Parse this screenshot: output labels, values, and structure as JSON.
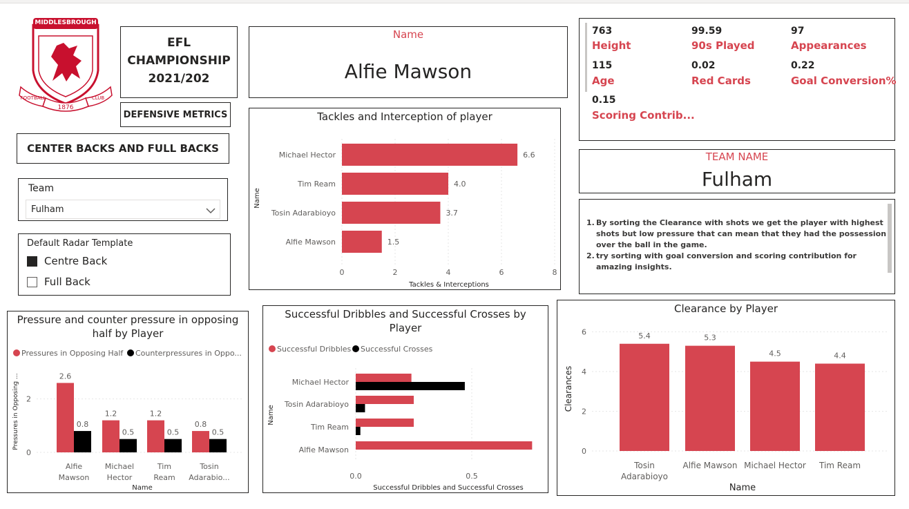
{
  "header": {
    "league_line1": "EFL",
    "league_line2": "CHAMPIONSHIP",
    "league_line3": "2021/202",
    "defensive_metrics": "DEFENSIVE METRICS",
    "positions": "CENTER BACKS AND FULL BACKS"
  },
  "logo": {
    "top_text": "MIDDLESBROUGH",
    "left_text": "FOOTBALL",
    "right_text": "CLUB",
    "year": "1876"
  },
  "team_filter": {
    "label": "Team",
    "value": "Fulham"
  },
  "radar": {
    "title": "Default Radar Template",
    "options": [
      {
        "label": "Centre Back",
        "checked": true
      },
      {
        "label": "Full Back",
        "checked": false
      }
    ]
  },
  "name_card": {
    "label": "Name",
    "value": "Alfie Mawson"
  },
  "kpis": [
    {
      "value": "763",
      "label": "Height"
    },
    {
      "value": "99.59",
      "label": "90s Played"
    },
    {
      "value": "97",
      "label": "Appearances"
    },
    {
      "value": "115",
      "label": "Age"
    },
    {
      "value": "0.02",
      "label": "Red Cards"
    },
    {
      "value": "0.22",
      "label": "Goal Conversion%"
    },
    {
      "value": "0.15",
      "label": "Scoring Contrib..."
    }
  ],
  "team_card": {
    "label": "TEAM NAME",
    "value": "Fulham"
  },
  "notes": {
    "item1": "By sorting the Clearance with shots we get the player with highest shots but low pressure that can mean that they had the possession over the ball in the game.",
    "item2": "try sorting with goal conversion and scoring contribution for amazing insights."
  },
  "colors": {
    "accent": "#d64550",
    "secondary": "#000000"
  },
  "chart_data": [
    {
      "id": "tackles",
      "type": "bar",
      "orientation": "horizontal",
      "title": "Tackles and Interception of player",
      "categories": [
        "Michael Hector",
        "Tim Ream",
        "Tosin Adarabioyo",
        "Alfie Mawson"
      ],
      "values": [
        6.6,
        4.0,
        3.7,
        1.5
      ],
      "value_labels": [
        "6.6",
        "4.0",
        "3.7",
        "1.5"
      ],
      "xlabel": "Tackles & Interceptions",
      "ylabel": "Name",
      "xlim": [
        0,
        8
      ],
      "ticks": [
        "0",
        "2",
        "4",
        "6",
        "8"
      ]
    },
    {
      "id": "pressure",
      "type": "bar",
      "title": "Pressure and counter pressure in opposing half by Player",
      "categories": [
        "Alfie Mawson",
        "Michael Hector",
        "Tim Ream",
        "Tosin Adarabio..."
      ],
      "series": [
        {
          "name": "Pressures in Opposing Half",
          "values": [
            2.6,
            1.2,
            1.2,
            0.8
          ],
          "labels": [
            "2.6",
            "1.2",
            "1.2",
            "0.8"
          ]
        },
        {
          "name": "Counterpressures in Oppo...",
          "values": [
            0.8,
            0.5,
            0.5,
            0.5
          ],
          "labels": [
            "0.8",
            "0.5",
            "0.5",
            "0.5"
          ]
        }
      ],
      "xlabel": "Name",
      "ylabel": "Pressures in Opposing ...",
      "ylim": [
        0,
        3
      ],
      "ticks": [
        "0",
        "2"
      ]
    },
    {
      "id": "dribbles",
      "type": "bar",
      "orientation": "horizontal",
      "title": "Successful Dribbles and Successful Crosses by Player",
      "categories": [
        "Michael Hector",
        "Tosin Adarabioyo",
        "Tim Ream",
        "Alfie Mawson"
      ],
      "series": [
        {
          "name": "Successful Dribbles",
          "values": [
            0.24,
            0.25,
            0.25,
            0.76
          ]
        },
        {
          "name": "Successful Crosses",
          "values": [
            0.47,
            0.04,
            0.02,
            0.0
          ]
        }
      ],
      "xlabel": "Successful Dribbles and Successful Crosses",
      "ylabel": "Name",
      "xlim": [
        0,
        0.8
      ],
      "ticks": [
        "0.0",
        "0.5"
      ]
    },
    {
      "id": "clearance",
      "type": "bar",
      "title": "Clearance by Player",
      "categories": [
        "Tosin Adarabioyo",
        "Alfie Mawson",
        "Michael Hector",
        "Tim Ream"
      ],
      "values": [
        5.4,
        5.3,
        4.5,
        4.4
      ],
      "value_labels": [
        "5.4",
        "5.3",
        "4.5",
        "4.4"
      ],
      "xlabel": "Name",
      "ylabel": "Clearances",
      "ylim": [
        0,
        6.4
      ],
      "ticks": [
        "0",
        "2",
        "4",
        "6"
      ]
    }
  ]
}
